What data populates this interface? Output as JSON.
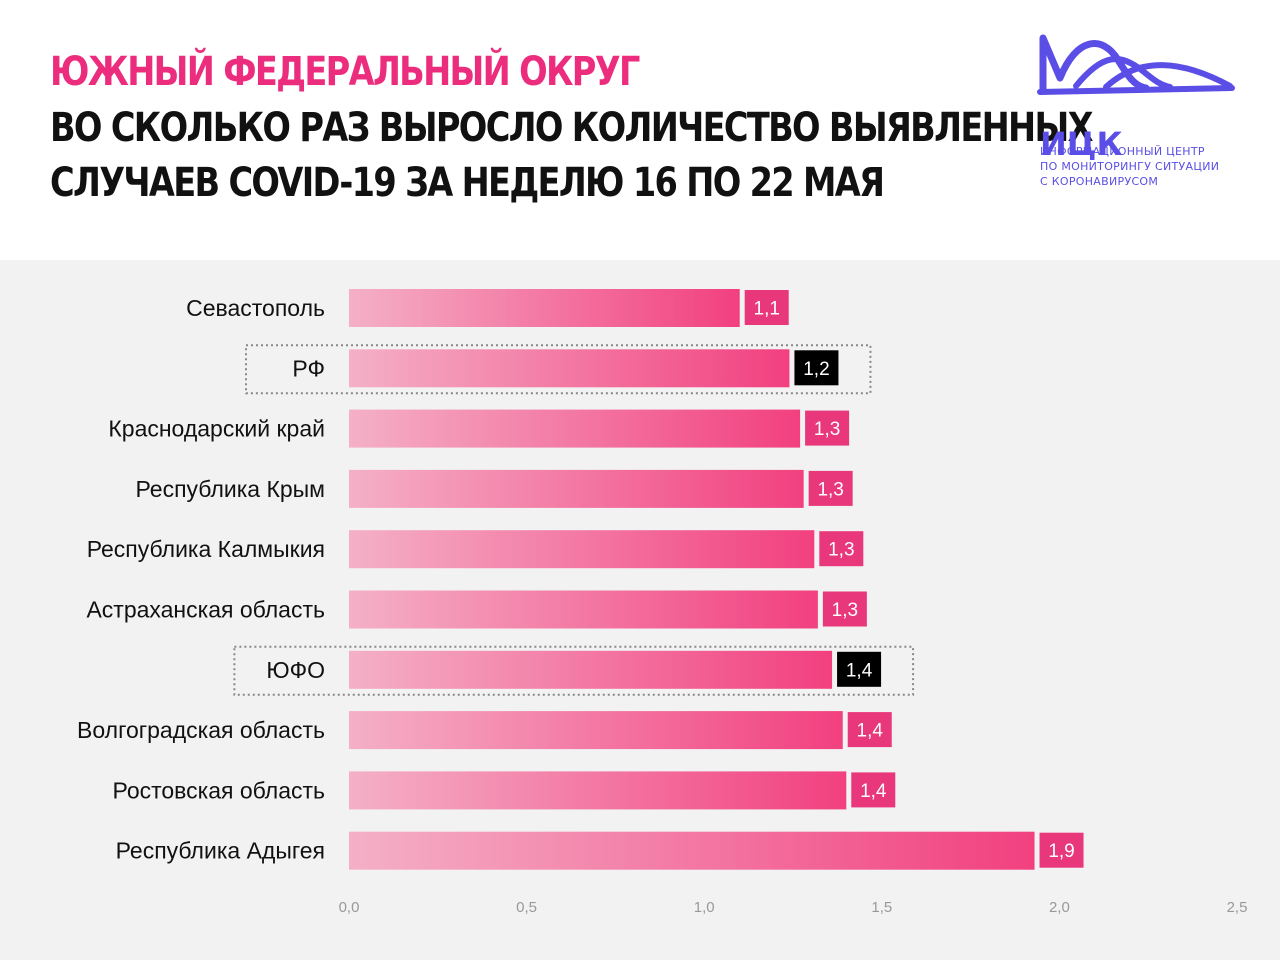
{
  "header": {
    "title_region": "ЮЖНЫЙ ФЕДЕРАЛЬНЫЙ ОКРУГ",
    "title_line1": "ВО СКОЛЬКО РАЗ ВЫРОСЛО КОЛИЧЕСТВО ВЫЯВЛЕННЫХ",
    "title_line2": "СЛУЧАЕВ   COVID-19 ЗА НЕДЕЛЮ 16 ПО 22 МАЯ"
  },
  "logo": {
    "abbr": "ИЦК",
    "line1": "ИНФОРМАЦИОННЫЙ ЦЕНТР",
    "line2": "ПО МОНИТОРИНГУ СИТУАЦИИ",
    "line3": "С КОРОНАВИРУСОМ",
    "color": "#5a4ee6"
  },
  "chart_data": {
    "type": "bar",
    "orientation": "horizontal",
    "categories": [
      "Севастополь",
      "РФ",
      "Краснодарский край",
      "Республика Крым",
      "Республика Калмыкия",
      "Астраханская область",
      "ЮФО",
      "Волгоградская область",
      "Ростовская область",
      "Республика Адыгея"
    ],
    "values": [
      1.1,
      1.24,
      1.27,
      1.28,
      1.31,
      1.32,
      1.36,
      1.39,
      1.4,
      1.93
    ],
    "value_labels": [
      "1,1",
      "1,2",
      "1,3",
      "1,3",
      "1,3",
      "1,3",
      "1,4",
      "1,4",
      "1,4",
      "1,9"
    ],
    "highlighted": [
      false,
      true,
      false,
      false,
      false,
      false,
      true,
      false,
      false,
      false
    ],
    "xlim": [
      0,
      2.5
    ],
    "x_ticks": [
      0,
      0.5,
      1.0,
      1.5,
      2.0,
      2.5
    ],
    "x_tick_labels": [
      "0,0",
      "0,5",
      "1,0",
      "1,5",
      "2,0",
      "2,5"
    ],
    "grid": false,
    "colors": {
      "bar_start": "#f4b0c7",
      "bar_end": "#f2407f",
      "label_bg": "#e8377a",
      "highlight_label_bg": "#000000",
      "accent": "#ec2d7e"
    }
  }
}
